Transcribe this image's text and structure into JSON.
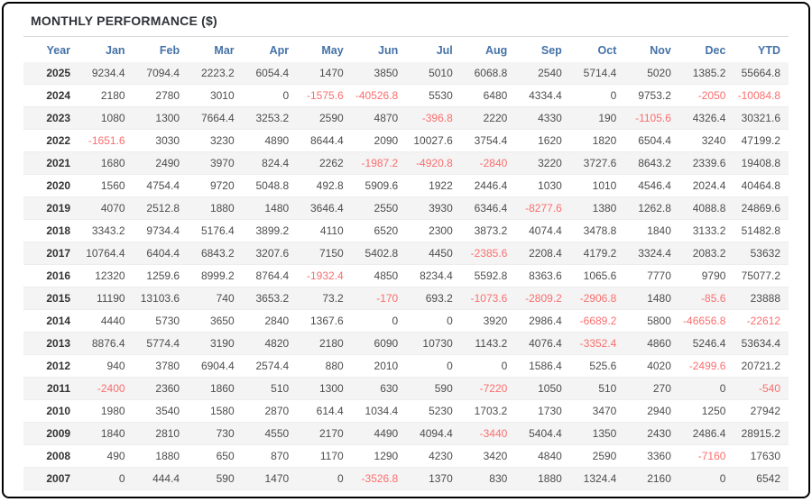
{
  "chart_data": {
    "type": "table",
    "title": "MONTHLY PERFORMANCE ($)",
    "columns": [
      "Year",
      "Jan",
      "Feb",
      "Mar",
      "Apr",
      "May",
      "Jun",
      "Jul",
      "Aug",
      "Sep",
      "Oct",
      "Nov",
      "Dec",
      "YTD"
    ],
    "rows": [
      [
        "2025",
        "9234.4",
        "7094.4",
        "2223.2",
        "6054.4",
        "1470",
        "3850",
        "5010",
        "6068.8",
        "2540",
        "5714.4",
        "5020",
        "1385.2",
        "55664.8"
      ],
      [
        "2024",
        "2180",
        "2780",
        "3010",
        "0",
        "-1575.6",
        "-40526.8",
        "5530",
        "6480",
        "4334.4",
        "0",
        "9753.2",
        "-2050",
        "-10084.8"
      ],
      [
        "2023",
        "1080",
        "1300",
        "7664.4",
        "3253.2",
        "2590",
        "4870",
        "-396.8",
        "2220",
        "4330",
        "190",
        "-1105.6",
        "4326.4",
        "30321.6"
      ],
      [
        "2022",
        "-1651.6",
        "3030",
        "3230",
        "4890",
        "8644.4",
        "2090",
        "10027.6",
        "3754.4",
        "1620",
        "1820",
        "6504.4",
        "3240",
        "47199.2"
      ],
      [
        "2021",
        "1680",
        "2490",
        "3970",
        "824.4",
        "2262",
        "-1987.2",
        "-4920.8",
        "-2840",
        "3220",
        "3727.6",
        "8643.2",
        "2339.6",
        "19408.8"
      ],
      [
        "2020",
        "1560",
        "4754.4",
        "9720",
        "5048.8",
        "492.8",
        "5909.6",
        "1922",
        "2446.4",
        "1030",
        "1010",
        "4546.4",
        "2024.4",
        "40464.8"
      ],
      [
        "2019",
        "4070",
        "2512.8",
        "1880",
        "1480",
        "3646.4",
        "2550",
        "3930",
        "6346.4",
        "-8277.6",
        "1380",
        "1262.8",
        "4088.8",
        "24869.6"
      ],
      [
        "2018",
        "3343.2",
        "9734.4",
        "5176.4",
        "3899.2",
        "4110",
        "6520",
        "2300",
        "3873.2",
        "4074.4",
        "3478.8",
        "1840",
        "3133.2",
        "51482.8"
      ],
      [
        "2017",
        "10764.4",
        "6404.4",
        "6843.2",
        "3207.6",
        "7150",
        "5402.8",
        "4450",
        "-2385.6",
        "2208.4",
        "4179.2",
        "3324.4",
        "2083.2",
        "53632"
      ],
      [
        "2016",
        "12320",
        "1259.6",
        "8999.2",
        "8764.4",
        "-1932.4",
        "4850",
        "8234.4",
        "5592.8",
        "8363.6",
        "1065.6",
        "7770",
        "9790",
        "75077.2"
      ],
      [
        "2015",
        "11190",
        "13103.6",
        "740",
        "3653.2",
        "73.2",
        "-170",
        "693.2",
        "-1073.6",
        "-2809.2",
        "-2906.8",
        "1480",
        "-85.6",
        "23888"
      ],
      [
        "2014",
        "4440",
        "5730",
        "3650",
        "2840",
        "1367.6",
        "0",
        "0",
        "3920",
        "2986.4",
        "-6689.2",
        "5800",
        "-46656.8",
        "-22612"
      ],
      [
        "2013",
        "8876.4",
        "5774.4",
        "3190",
        "4820",
        "2180",
        "6090",
        "10730",
        "1143.2",
        "4076.4",
        "-3352.4",
        "4860",
        "5246.4",
        "53634.4"
      ],
      [
        "2012",
        "940",
        "3780",
        "6904.4",
        "2574.4",
        "880",
        "2010",
        "0",
        "0",
        "1586.4",
        "525.6",
        "4020",
        "-2499.6",
        "20721.2"
      ],
      [
        "2011",
        "-2400",
        "2360",
        "1860",
        "510",
        "1300",
        "630",
        "590",
        "-7220",
        "1050",
        "510",
        "270",
        "0",
        "-540"
      ],
      [
        "2010",
        "1980",
        "3540",
        "1580",
        "2870",
        "614.4",
        "1034.4",
        "5230",
        "1703.2",
        "1730",
        "3470",
        "2940",
        "1250",
        "27942"
      ],
      [
        "2009",
        "1840",
        "2810",
        "730",
        "4550",
        "2170",
        "4490",
        "4094.4",
        "-3440",
        "5404.4",
        "1350",
        "2430",
        "2486.4",
        "28915.2"
      ],
      [
        "2008",
        "490",
        "1880",
        "650",
        "870",
        "1170",
        "1290",
        "4230",
        "3420",
        "4840",
        "2590",
        "3360",
        "-7160",
        "17630"
      ],
      [
        "2007",
        "0",
        "444.4",
        "590",
        "1470",
        "0",
        "-3526.8",
        "1370",
        "830",
        "1880",
        "1324.4",
        "2160",
        "0",
        "6542"
      ]
    ]
  },
  "colors": {
    "header_text": "#4572a7",
    "negative_value": "#fb6e6e",
    "positive_value": "#4d4d4d",
    "year_text": "#333333",
    "row_stripe": "#f4f4f4",
    "title_text": "#2e3338",
    "frame_border": "#000000"
  }
}
